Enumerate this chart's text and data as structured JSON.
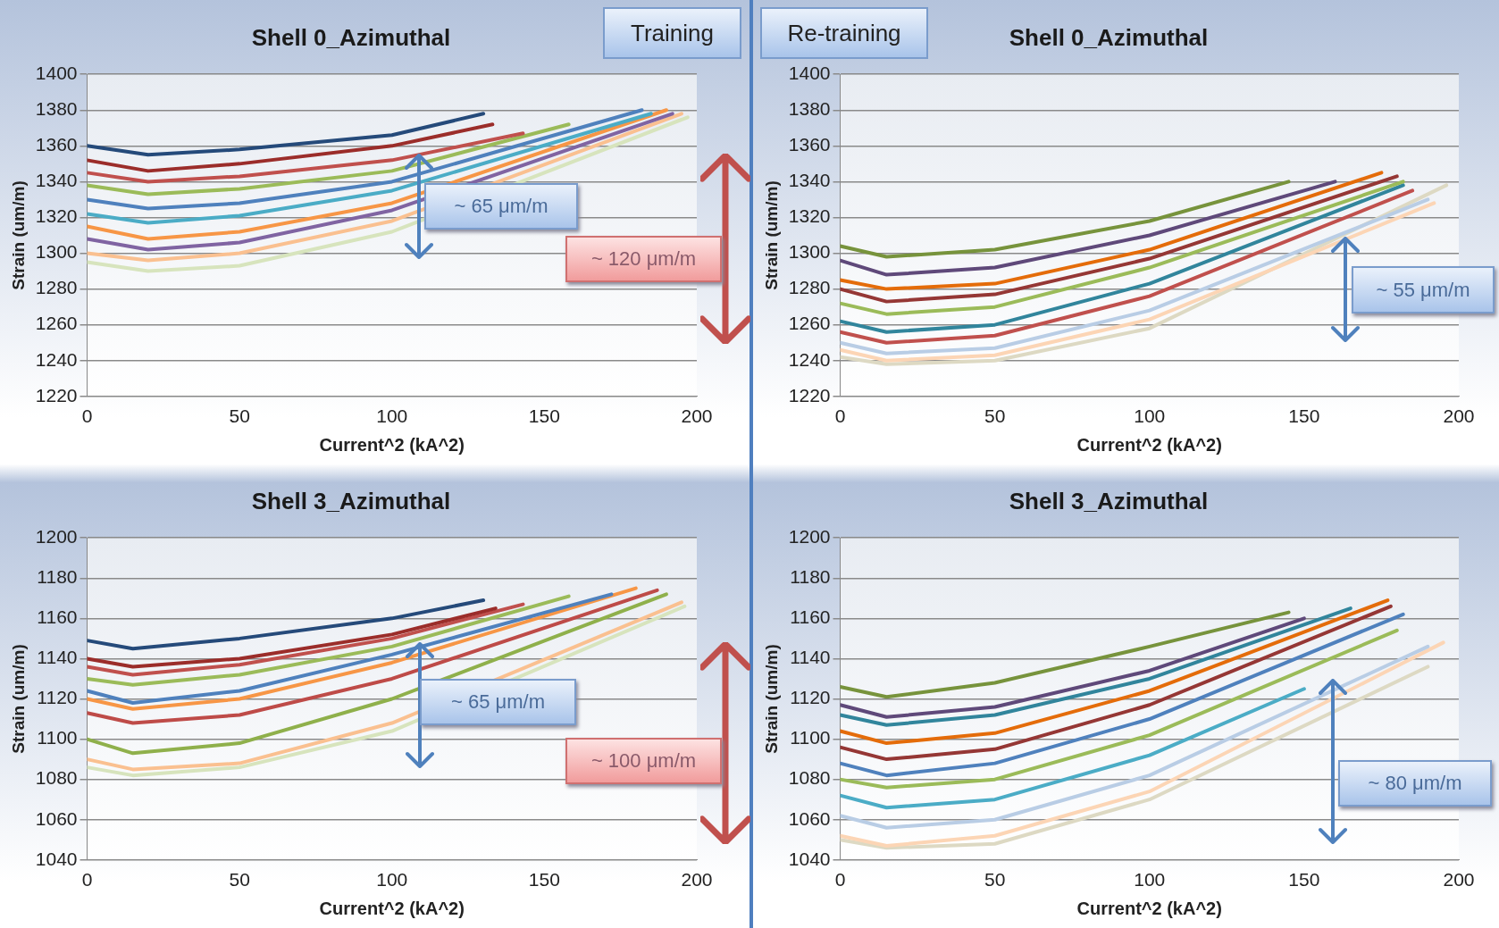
{
  "chart_data": [
    {
      "type": "line",
      "title": "Shell 0_Azimuthal",
      "xlabel": "Current^2 (kA^2)",
      "ylabel": "Strain (um/m)",
      "xlim": [
        0,
        200
      ],
      "xticks": [
        0,
        50,
        100,
        150,
        200
      ],
      "ylim": [
        1220,
        1400
      ],
      "yticks": [
        1220,
        1240,
        1260,
        1280,
        1300,
        1320,
        1340,
        1360,
        1380,
        1400
      ],
      "grid": "y",
      "legend": false,
      "annotations": [
        "Training",
        "~ 65 μm/m",
        "~ 120 μm/m"
      ],
      "series": [
        {
          "color": "#254a7a",
          "x": [
            0,
            20,
            50,
            100,
            130
          ],
          "values": [
            1360,
            1355,
            1358,
            1366,
            1378
          ]
        },
        {
          "color": "#9b2d2a",
          "x": [
            0,
            20,
            50,
            100,
            133
          ],
          "values": [
            1352,
            1346,
            1350,
            1360,
            1372
          ]
        },
        {
          "color": "#c0504d",
          "x": [
            0,
            20,
            50,
            100,
            143
          ],
          "values": [
            1345,
            1340,
            1343,
            1352,
            1367
          ]
        },
        {
          "color": "#9bbb59",
          "x": [
            0,
            20,
            50,
            100,
            158
          ],
          "values": [
            1338,
            1333,
            1336,
            1346,
            1372
          ]
        },
        {
          "color": "#4f81bd",
          "x": [
            0,
            20,
            50,
            100,
            182
          ],
          "values": [
            1330,
            1325,
            1328,
            1340,
            1380
          ]
        },
        {
          "color": "#4bacc6",
          "x": [
            0,
            20,
            50,
            100,
            185
          ],
          "values": [
            1322,
            1317,
            1321,
            1335,
            1378
          ]
        },
        {
          "color": "#f79646",
          "x": [
            0,
            20,
            50,
            100,
            190
          ],
          "values": [
            1315,
            1308,
            1312,
            1328,
            1380
          ]
        },
        {
          "color": "#8064a2",
          "x": [
            0,
            20,
            50,
            100,
            192
          ],
          "values": [
            1308,
            1302,
            1306,
            1324,
            1378
          ]
        },
        {
          "color": "#fac090",
          "x": [
            0,
            20,
            50,
            100,
            195
          ],
          "values": [
            1300,
            1296,
            1300,
            1318,
            1378
          ]
        },
        {
          "color": "#d7e4bd",
          "x": [
            0,
            20,
            50,
            100,
            197
          ],
          "values": [
            1295,
            1290,
            1293,
            1312,
            1376
          ]
        }
      ]
    },
    {
      "type": "line",
      "title": "Shell 0_Azimuthal",
      "xlabel": "Current^2 (kA^2)",
      "ylabel": "Strain (um/m)",
      "xlim": [
        0,
        200
      ],
      "xticks": [
        0,
        50,
        100,
        150,
        200
      ],
      "ylim": [
        1220,
        1400
      ],
      "yticks": [
        1220,
        1240,
        1260,
        1280,
        1300,
        1320,
        1340,
        1360,
        1380,
        1400
      ],
      "grid": "y",
      "legend": false,
      "annotations": [
        "Re-training",
        "~ 55 μm/m"
      ],
      "series": [
        {
          "color": "#77933c",
          "x": [
            0,
            15,
            50,
            100,
            145
          ],
          "values": [
            1304,
            1298,
            1302,
            1318,
            1340
          ]
        },
        {
          "color": "#5f497a",
          "x": [
            0,
            15,
            50,
            100,
            160
          ],
          "values": [
            1296,
            1288,
            1292,
            1310,
            1340
          ]
        },
        {
          "color": "#e46c0a",
          "x": [
            0,
            15,
            50,
            100,
            175
          ],
          "values": [
            1285,
            1280,
            1283,
            1302,
            1345
          ]
        },
        {
          "color": "#953735",
          "x": [
            0,
            15,
            50,
            100,
            180
          ],
          "values": [
            1280,
            1273,
            1277,
            1297,
            1343
          ]
        },
        {
          "color": "#9bbb59",
          "x": [
            0,
            15,
            50,
            100,
            182
          ],
          "values": [
            1272,
            1266,
            1270,
            1292,
            1340
          ]
        },
        {
          "color": "#31859c",
          "x": [
            0,
            15,
            50,
            100,
            182
          ],
          "values": [
            1262,
            1256,
            1260,
            1283,
            1338
          ]
        },
        {
          "color": "#c0504d",
          "x": [
            0,
            15,
            50,
            100,
            185
          ],
          "values": [
            1256,
            1250,
            1254,
            1276,
            1335
          ]
        },
        {
          "color": "#b9cde5",
          "x": [
            0,
            15,
            50,
            100,
            190
          ],
          "values": [
            1250,
            1244,
            1247,
            1268,
            1330
          ]
        },
        {
          "color": "#fcd5b5",
          "x": [
            0,
            15,
            50,
            100,
            192
          ],
          "values": [
            1246,
            1240,
            1243,
            1263,
            1328
          ]
        },
        {
          "color": "#ddd9c3",
          "x": [
            0,
            15,
            50,
            100,
            196
          ],
          "values": [
            1242,
            1238,
            1240,
            1258,
            1338
          ]
        }
      ]
    },
    {
      "type": "line",
      "title": "Shell 3_Azimuthal",
      "xlabel": "Current^2 (kA^2)",
      "ylabel": "Strain (um/m)",
      "xlim": [
        0,
        200
      ],
      "xticks": [
        0,
        50,
        100,
        150,
        200
      ],
      "ylim": [
        1040,
        1200
      ],
      "yticks": [
        1040,
        1060,
        1080,
        1100,
        1120,
        1140,
        1160,
        1180,
        1200
      ],
      "grid": "y",
      "legend": false,
      "annotations": [
        "~ 65 μm/m",
        "~ 100 μm/m"
      ],
      "series": [
        {
          "color": "#254a7a",
          "x": [
            0,
            15,
            50,
            100,
            130
          ],
          "values": [
            1149,
            1145,
            1150,
            1160,
            1169
          ]
        },
        {
          "color": "#9b2d2a",
          "x": [
            0,
            15,
            50,
            100,
            134
          ],
          "values": [
            1140,
            1136,
            1140,
            1152,
            1165
          ]
        },
        {
          "color": "#c0504d",
          "x": [
            0,
            15,
            50,
            100,
            143
          ],
          "values": [
            1136,
            1132,
            1137,
            1150,
            1167
          ]
        },
        {
          "color": "#9bbb59",
          "x": [
            0,
            15,
            50,
            100,
            158
          ],
          "values": [
            1130,
            1127,
            1132,
            1146,
            1171
          ]
        },
        {
          "color": "#4f81bd",
          "x": [
            0,
            15,
            50,
            100,
            172
          ],
          "values": [
            1124,
            1118,
            1124,
            1142,
            1172
          ]
        },
        {
          "color": "#f79646",
          "x": [
            0,
            15,
            50,
            100,
            180
          ],
          "values": [
            1120,
            1115,
            1120,
            1138,
            1175
          ]
        },
        {
          "color": "#be4b48",
          "x": [
            0,
            15,
            50,
            100,
            187
          ],
          "values": [
            1113,
            1108,
            1112,
            1130,
            1174
          ]
        },
        {
          "color": "#8fb04b",
          "x": [
            0,
            15,
            50,
            100,
            190
          ],
          "values": [
            1100,
            1093,
            1098,
            1120,
            1172
          ]
        },
        {
          "color": "#fac090",
          "x": [
            0,
            15,
            50,
            100,
            195
          ],
          "values": [
            1090,
            1085,
            1088,
            1108,
            1168
          ]
        },
        {
          "color": "#d7e4bd",
          "x": [
            0,
            15,
            50,
            100,
            196
          ],
          "values": [
            1086,
            1082,
            1086,
            1104,
            1166
          ]
        }
      ]
    },
    {
      "type": "line",
      "title": "Shell 3_Azimuthal",
      "xlabel": "Current^2 (kA^2)",
      "ylabel": "Strain (um/m)",
      "xlim": [
        0,
        200
      ],
      "xticks": [
        0,
        50,
        100,
        150,
        200
      ],
      "ylim": [
        1040,
        1200
      ],
      "yticks": [
        1040,
        1060,
        1080,
        1100,
        1120,
        1140,
        1160,
        1180,
        1200
      ],
      "grid": "y",
      "legend": false,
      "annotations": [
        "~ 80 μm/m"
      ],
      "series": [
        {
          "color": "#77933c",
          "x": [
            0,
            15,
            50,
            100,
            145
          ],
          "values": [
            1126,
            1121,
            1128,
            1146,
            1163
          ]
        },
        {
          "color": "#5f497a",
          "x": [
            0,
            15,
            50,
            100,
            150
          ],
          "values": [
            1117,
            1111,
            1116,
            1134,
            1160
          ]
        },
        {
          "color": "#31859c",
          "x": [
            0,
            15,
            50,
            100,
            165
          ],
          "values": [
            1112,
            1107,
            1112,
            1130,
            1165
          ]
        },
        {
          "color": "#e46c0a",
          "x": [
            0,
            15,
            50,
            100,
            177
          ],
          "values": [
            1104,
            1098,
            1103,
            1124,
            1169
          ]
        },
        {
          "color": "#953735",
          "x": [
            0,
            15,
            50,
            100,
            178
          ],
          "values": [
            1096,
            1090,
            1095,
            1117,
            1166
          ]
        },
        {
          "color": "#4f81bd",
          "x": [
            0,
            15,
            50,
            100,
            182
          ],
          "values": [
            1088,
            1082,
            1088,
            1110,
            1162
          ]
        },
        {
          "color": "#9bbb59",
          "x": [
            0,
            15,
            50,
            100,
            180
          ],
          "values": [
            1080,
            1076,
            1080,
            1102,
            1154
          ]
        },
        {
          "color": "#4bacc6",
          "x": [
            0,
            15,
            50,
            100,
            150
          ],
          "values": [
            1072,
            1066,
            1070,
            1092,
            1125
          ]
        },
        {
          "color": "#b9cde5",
          "x": [
            0,
            15,
            50,
            100,
            190
          ],
          "values": [
            1062,
            1056,
            1060,
            1082,
            1146
          ]
        },
        {
          "color": "#fcd5b5",
          "x": [
            0,
            15,
            50,
            100,
            195
          ],
          "values": [
            1052,
            1047,
            1052,
            1074,
            1148
          ]
        },
        {
          "color": "#ddd9c3",
          "x": [
            0,
            15,
            50,
            100,
            190
          ],
          "values": [
            1050,
            1046,
            1048,
            1070,
            1136
          ]
        }
      ]
    }
  ]
}
